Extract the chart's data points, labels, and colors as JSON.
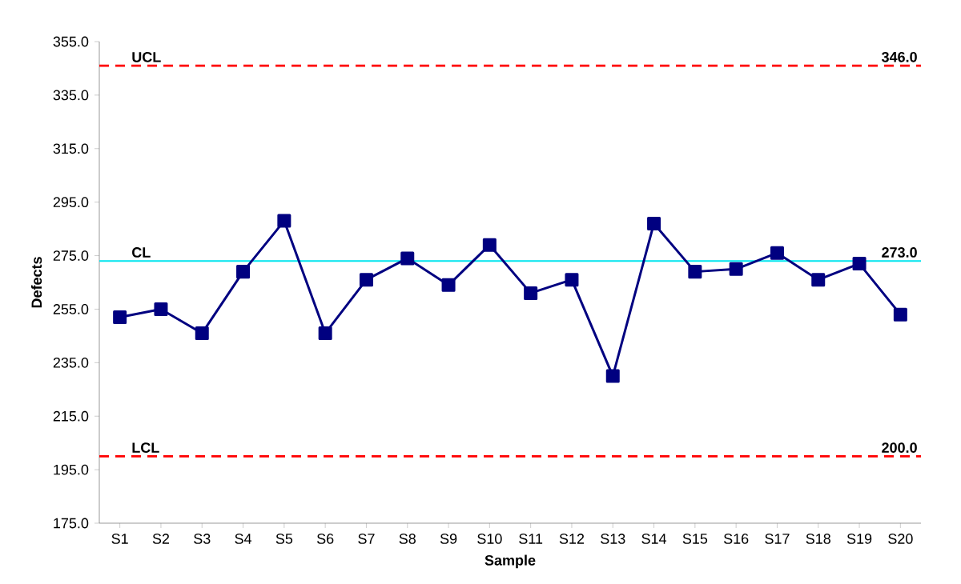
{
  "chart_data": {
    "type": "line",
    "xlabel": "Sample",
    "ylabel": "Defects",
    "categories": [
      "S1",
      "S2",
      "S3",
      "S4",
      "S5",
      "S6",
      "S7",
      "S8",
      "S9",
      "S10",
      "S11",
      "S12",
      "S13",
      "S14",
      "S15",
      "S16",
      "S17",
      "S18",
      "S19",
      "S20"
    ],
    "series": [
      {
        "color": "#000080",
        "values": [
          252,
          255,
          246,
          269,
          288,
          246,
          266,
          274,
          264,
          279,
          261,
          266,
          230,
          287,
          269,
          270,
          276,
          266,
          272,
          253
        ]
      }
    ],
    "marker": "square",
    "line_style": "solid",
    "grid": false,
    "legend": false,
    "ylim": [
      175,
      355
    ],
    "yticks": [
      {
        "value": 175,
        "label": "175.0"
      },
      {
        "value": 195,
        "label": "195.0"
      },
      {
        "value": 215,
        "label": "215.0"
      },
      {
        "value": 235,
        "label": "235.0"
      },
      {
        "value": 255,
        "label": "255.0"
      },
      {
        "value": 275,
        "label": "275.0"
      },
      {
        "value": 295,
        "label": "295.0"
      },
      {
        "value": 315,
        "label": "315.0"
      },
      {
        "value": 335,
        "label": "335.0"
      },
      {
        "value": 355,
        "label": "355.0"
      }
    ],
    "ref_lines": [
      {
        "axis": "y",
        "value": 346,
        "label": "UCL",
        "color": "#ff0000",
        "line_style": "dashed"
      },
      {
        "axis": "y",
        "value": 273,
        "label": "CL",
        "color": "#00e5ee",
        "line_style": "solid"
      },
      {
        "axis": "y",
        "value": 200,
        "label": "LCL",
        "color": "#ff0000",
        "line_style": "dashed"
      }
    ],
    "annotations": [
      {
        "text": "346.0",
        "x": "S20",
        "y": 346
      },
      {
        "text": "273.0",
        "x": "S20",
        "y": 273
      },
      {
        "text": "200.0",
        "x": "S20",
        "y": 200
      }
    ]
  }
}
